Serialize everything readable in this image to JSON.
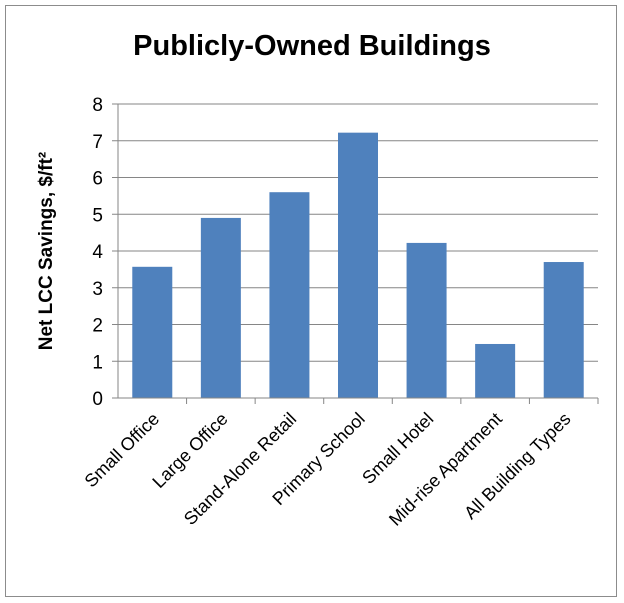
{
  "chart_data": {
    "type": "bar",
    "title": "Publicly-Owned Buildings",
    "xlabel": "",
    "ylabel": "Net LCC Savings, $/ft²",
    "categories": [
      "Small Office",
      "Large Office",
      "Stand-Alone Retail",
      "Primary School",
      "Small Hotel",
      "Mid-rise Apartment",
      "All Building Types"
    ],
    "values": [
      3.57,
      4.9,
      5.6,
      7.22,
      4.22,
      1.47,
      3.7
    ],
    "ylim": [
      0,
      8
    ],
    "yticks": [
      0,
      1,
      2,
      3,
      4,
      5,
      6,
      7,
      8
    ],
    "grid": true,
    "bar_color": "#4f81bd",
    "grid_color": "#868686",
    "legend": false
  }
}
